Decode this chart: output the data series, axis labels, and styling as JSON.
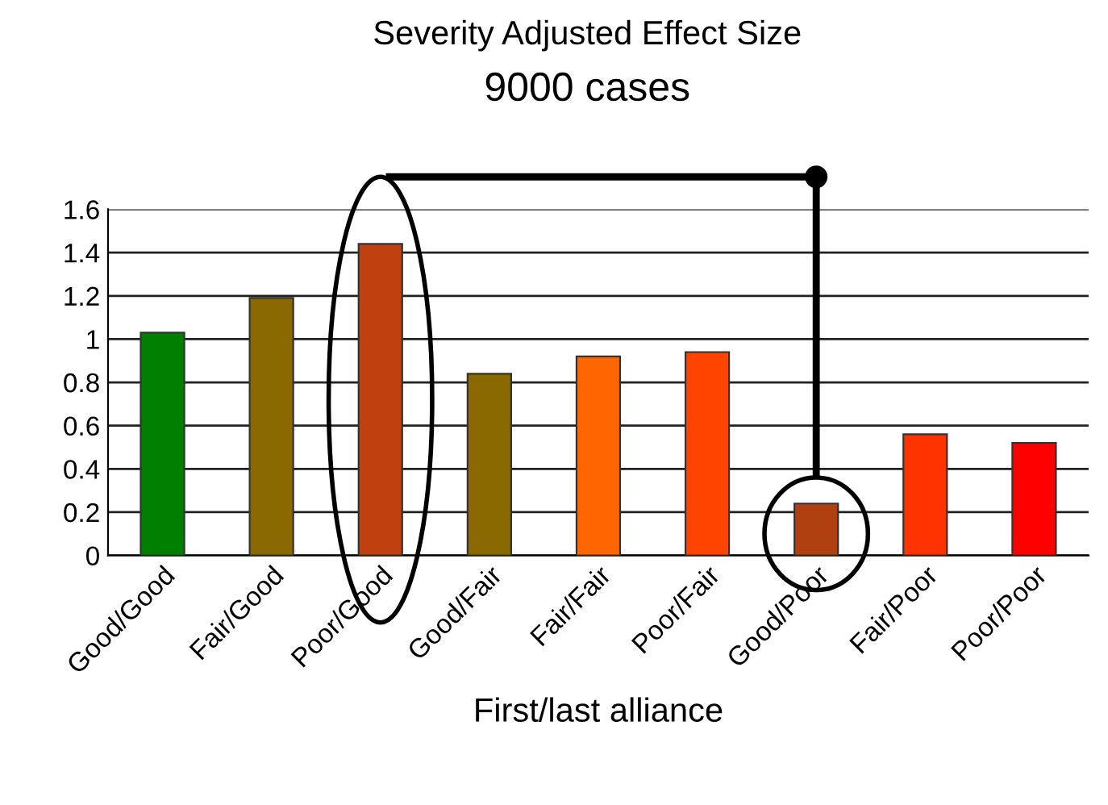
{
  "chart_data": {
    "type": "bar",
    "title": "Severity Adjusted Effect Size",
    "subtitle": "9000 cases",
    "xlabel": "First/last alliance",
    "categories": [
      "Good/Good",
      "Fair/Good",
      "Poor/Good",
      "Good/Fair",
      "Fair/Fair",
      "Poor/Fair",
      "Good/Poor",
      "Fair/Poor",
      "Poor/Poor"
    ],
    "values": [
      1.03,
      1.19,
      1.44,
      0.84,
      0.92,
      0.94,
      0.24,
      0.56,
      0.52
    ],
    "colors": [
      "#007f00",
      "#8a6a00",
      "#c04010",
      "#8a6a00",
      "#ff6600",
      "#ff4400",
      "#b04010",
      "#ff3300",
      "#ff0000"
    ],
    "ylim": [
      0,
      1.6
    ],
    "yticks": [
      0,
      0.2,
      0.4,
      0.6,
      0.8,
      1,
      1.2,
      1.4,
      1.6
    ],
    "grid": "y",
    "legend": false
  }
}
